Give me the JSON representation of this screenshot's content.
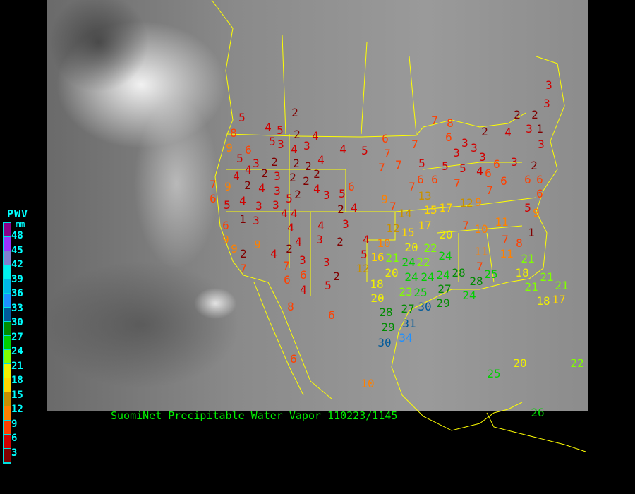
{
  "caption": "SuomiNet Precipitable Water Vapor 110223/1145",
  "legend": {
    "title": "PWV",
    "unit": "mm",
    "labels": [
      "48",
      "45",
      "42",
      "39",
      "36",
      "33",
      "30",
      "27",
      "24",
      "21",
      "18",
      "15",
      "12",
      "9",
      "6",
      "3"
    ],
    "colors": [
      "#8b008b",
      "#9933ff",
      "#8080d0",
      "#00f0f0",
      "#00b8e8",
      "#1e90ff",
      "#005a9a",
      "#008c00",
      "#00d000",
      "#80ff00",
      "#f0f000",
      "#ffd700",
      "#c89000",
      "#ff8000",
      "#ff4000",
      "#d00000",
      "#800000"
    ]
  },
  "stations": [
    5,
    8,
    9,
    6,
    4,
    5,
    5,
    3,
    2,
    2,
    4,
    4,
    3,
    4,
    5,
    6,
    7,
    7,
    7,
    5,
    3,
    4,
    2,
    2,
    2,
    4,
    2,
    4,
    2,
    2,
    4,
    3,
    3,
    2,
    2,
    2,
    5,
    3,
    4,
    4,
    4,
    4,
    3,
    5,
    6,
    7,
    9,
    6,
    5,
    4,
    3,
    1,
    3,
    6,
    9,
    9,
    2,
    7,
    9,
    4,
    2,
    4,
    4,
    2,
    4,
    3,
    4,
    3,
    2,
    7,
    3,
    6,
    6,
    4,
    5,
    3,
    2,
    8,
    6,
    6,
    10,
    9,
    7,
    14,
    12,
    15,
    10,
    5,
    12,
    16,
    21,
    20,
    18,
    20,
    20,
    17,
    15,
    17,
    13,
    12,
    9,
    7,
    20,
    7,
    8,
    7,
    5,
    6,
    7,
    6,
    5,
    7,
    6,
    3,
    3,
    5,
    3,
    3,
    4,
    6,
    6,
    2,
    4,
    2,
    3,
    2,
    1,
    3,
    3,
    3,
    3,
    2,
    6,
    6,
    6,
    6,
    7,
    5,
    9,
    11,
    10,
    7,
    11,
    8,
    1,
    11,
    7,
    21,
    18,
    21,
    21,
    21,
    18,
    17,
    22,
    20,
    25,
    26,
    24,
    22,
    22,
    24,
    24,
    24,
    24,
    27,
    28,
    28,
    25,
    24,
    23,
    25,
    29,
    30,
    28,
    27,
    31,
    29,
    34,
    30,
    26
  ]
}
